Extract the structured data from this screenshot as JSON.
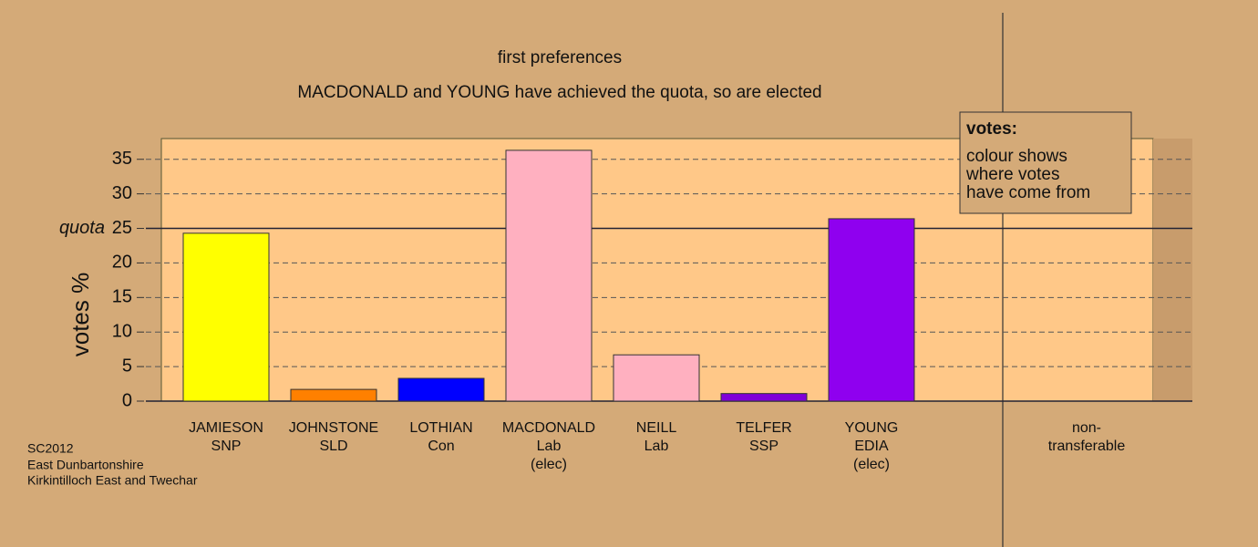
{
  "chart_data": {
    "type": "bar",
    "title": "first preferences",
    "subtitle": "MACDONALD and YOUNG have achieved the quota, so are elected",
    "y_label": "votes %",
    "categories": [
      [
        "JAMIESON",
        "SNP"
      ],
      [
        "JOHNSTONE",
        "SLD"
      ],
      [
        "LOTHIAN",
        "Con"
      ],
      [
        "MACDONALD",
        "Lab",
        "(elec)"
      ],
      [
        "NEILL",
        "Lab"
      ],
      [
        "TELFER",
        "SSP"
      ],
      [
        "YOUNG",
        "EDIA",
        "(elec)"
      ],
      [
        "non-",
        "transferable"
      ]
    ],
    "values": [
      24.3,
      1.7,
      3.3,
      36.3,
      6.7,
      1.1,
      26.4,
      null
    ],
    "colors": [
      "#ffff00",
      "#ff8000",
      "#0000ff",
      "#ffb0c0",
      "#ffb0c0",
      "#8000d8",
      "#8f00ef",
      "#888888"
    ],
    "ylim": [
      0,
      38
    ],
    "yticks": [
      0,
      5,
      10,
      15,
      20,
      25,
      30,
      35
    ],
    "quota": {
      "label": "quota",
      "value": 25
    },
    "legend": {
      "title": "votes:",
      "lines": [
        "colour shows",
        "where votes",
        "have come from"
      ]
    },
    "footer": [
      "SC2012",
      "East Dunbartonshire",
      "Kirkintilloch East and Twechar"
    ],
    "grid": true
  }
}
